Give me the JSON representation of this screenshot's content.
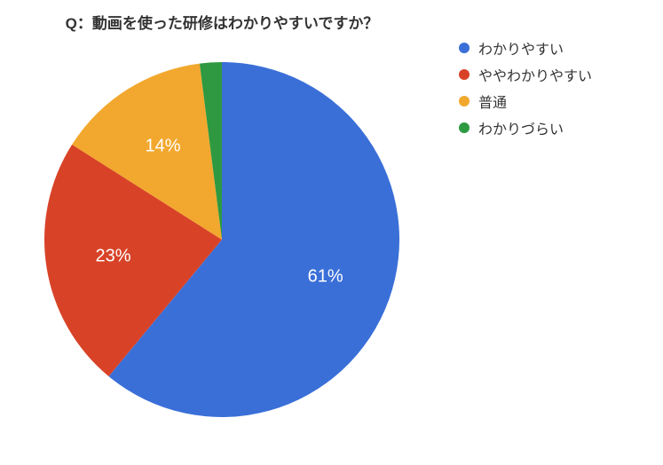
{
  "chart": {
    "type": "pie",
    "title": "Q：動画を使った研修はわかりやすいですか？",
    "title_fontsize": 17,
    "title_color": "#333333",
    "background_color": "#ffffff",
    "start_angle_deg": 0,
    "direction": "clockwise",
    "radius": 200,
    "label_fontsize": 20,
    "label_color_inside": "#ffffff",
    "label_color_outside": "#333333",
    "slices": [
      {
        "label": "わかりやすい",
        "value": 61,
        "display": "61%",
        "color": "#3a6fd8",
        "label_inside": true
      },
      {
        "label": "ややわかりやすい",
        "value": 23,
        "display": "23%",
        "color": "#d84328",
        "label_inside": true
      },
      {
        "label": "普通",
        "value": 14,
        "display": "14%",
        "color": "#f2a82e",
        "label_inside": true
      },
      {
        "label": "わかりづらい",
        "value": 2,
        "display": "2%",
        "color": "#2e9941",
        "label_inside": false
      }
    ],
    "legend": {
      "position": "right",
      "fontsize": 16,
      "text_color": "#333333",
      "swatch_shape": "circle",
      "swatch_size": 12
    }
  }
}
